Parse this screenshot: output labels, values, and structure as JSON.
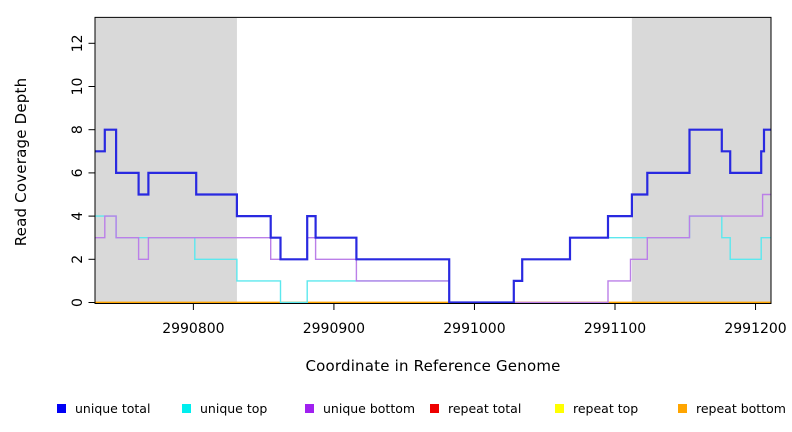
{
  "chart_data": {
    "type": "line",
    "step": "post",
    "title": "",
    "xlabel": "Coordinate in Reference Genome",
    "ylabel": "Read Coverage Depth",
    "xlim": [
      2990730,
      2991211
    ],
    "ylim": [
      0,
      13.2
    ],
    "xticks": [
      2990800,
      2990900,
      2991000,
      2991100,
      2991200
    ],
    "yticks": [
      0,
      2,
      4,
      6,
      8,
      10,
      12
    ],
    "grid": false,
    "background": "#FFFFFF",
    "shaded_region_color": "#D9D9D9",
    "shaded_regions": [
      {
        "x0": 2990730,
        "x1": 2990831
      },
      {
        "x0": 2991112,
        "x1": 2991211
      }
    ],
    "legend_position": "bottom",
    "legend": [
      {
        "label": "unique total",
        "color": "#0000F5"
      },
      {
        "label": "unique top",
        "color": "#00EEEE"
      },
      {
        "label": "unique bottom",
        "color": "#A020F0"
      },
      {
        "label": "repeat total",
        "color": "#EE0000"
      },
      {
        "label": "repeat top",
        "color": "#FFFF00"
      },
      {
        "label": "repeat bottom",
        "color": "#FFA500"
      }
    ],
    "series": [
      {
        "name": "repeat total",
        "line_color": "#EE0000",
        "line_width": 1.2,
        "points": [
          [
            2990730,
            0
          ]
        ]
      },
      {
        "name": "repeat top",
        "line_color": "#FFFF00",
        "line_width": 1.2,
        "points": [
          [
            2990730,
            0
          ]
        ]
      },
      {
        "name": "repeat bottom",
        "line_color": "#FFA500",
        "line_width": 1.6,
        "points": [
          [
            2990730,
            0
          ]
        ]
      },
      {
        "name": "unique top",
        "line_color": "#5CE8EE",
        "line_width": 1.4,
        "points": [
          [
            2990730,
            4
          ],
          [
            2990745,
            3
          ],
          [
            2990801,
            2
          ],
          [
            2990831,
            1
          ],
          [
            2990862,
            0
          ],
          [
            2990881,
            1
          ],
          [
            2990982,
            0
          ],
          [
            2991028,
            1
          ],
          [
            2991034,
            2
          ],
          [
            2991068,
            3
          ],
          [
            2991153,
            4
          ],
          [
            2991176,
            3
          ],
          [
            2991182,
            2
          ],
          [
            2991204,
            3
          ]
        ]
      },
      {
        "name": "unique bottom",
        "line_color": "#BB7FE8",
        "line_width": 1.4,
        "points": [
          [
            2990730,
            3
          ],
          [
            2990737,
            4
          ],
          [
            2990745,
            3
          ],
          [
            2990761,
            2
          ],
          [
            2990768,
            3
          ],
          [
            2990855,
            2
          ],
          [
            2990881,
            3
          ],
          [
            2990887,
            2
          ],
          [
            2990916,
            1
          ],
          [
            2990982,
            0
          ],
          [
            2991095,
            1
          ],
          [
            2991111,
            2
          ],
          [
            2991123,
            3
          ],
          [
            2991153,
            4
          ],
          [
            2991205,
            5
          ]
        ]
      },
      {
        "name": "unique total",
        "line_color": "#2929E0",
        "line_width": 2.2,
        "points": [
          [
            2990730,
            7
          ],
          [
            2990737,
            8
          ],
          [
            2990745,
            6
          ],
          [
            2990761,
            5
          ],
          [
            2990768,
            6
          ],
          [
            2990802,
            5
          ],
          [
            2990831,
            4
          ],
          [
            2990855,
            3
          ],
          [
            2990862,
            2
          ],
          [
            2990881,
            4
          ],
          [
            2990887,
            3
          ],
          [
            2990916,
            2
          ],
          [
            2990982,
            0
          ],
          [
            2991028,
            1
          ],
          [
            2991034,
            2
          ],
          [
            2991068,
            3
          ],
          [
            2991095,
            4
          ],
          [
            2991112,
            5
          ],
          [
            2991123,
            6
          ],
          [
            2991153,
            8
          ],
          [
            2991176,
            7
          ],
          [
            2991182,
            6
          ],
          [
            2991204,
            7
          ],
          [
            2991206,
            8
          ]
        ]
      }
    ]
  }
}
